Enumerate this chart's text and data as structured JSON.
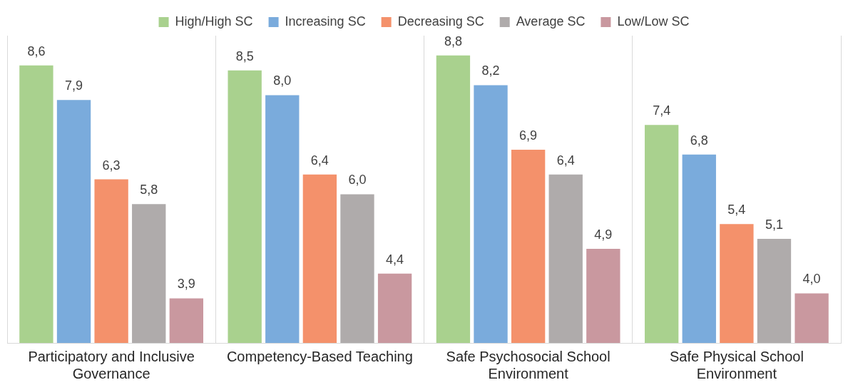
{
  "chart_data": {
    "type": "bar",
    "categories": [
      "Participatory and Inclusive Governance",
      "Competency-Based Teaching",
      "Safe Psychosocial School Environment",
      "Safe Physical School Environment"
    ],
    "series": [
      {
        "name": "High/High SC",
        "color": "#a9d18e",
        "values": [
          8.6,
          8.5,
          8.8,
          7.4
        ],
        "value_labels": [
          "8,6",
          "8,5",
          "8,8",
          "7,4"
        ]
      },
      {
        "name": "Increasing SC",
        "color": "#7aabdc",
        "values": [
          7.9,
          8.0,
          8.2,
          6.8
        ],
        "value_labels": [
          "7,9",
          "8,0",
          "8,2",
          "6,8"
        ]
      },
      {
        "name": "Decreasing SC",
        "color": "#f4916b",
        "values": [
          6.3,
          6.4,
          6.9,
          5.4
        ],
        "value_labels": [
          "6,3",
          "6,4",
          "6,9",
          "5,4"
        ]
      },
      {
        "name": "Average SC",
        "color": "#afabab",
        "values": [
          5.8,
          6.0,
          6.4,
          5.1
        ],
        "value_labels": [
          "5,8",
          "6,0",
          "6,4",
          "5,1"
        ]
      },
      {
        "name": "Low/Low SC",
        "color": "#c9989f",
        "values": [
          3.9,
          4.4,
          4.9,
          4.0
        ],
        "value_labels": [
          "3,9",
          "4,4",
          "4,9",
          "4,0"
        ]
      }
    ],
    "ylim": [
      3,
      9.2
    ],
    "grid": "x",
    "legend": "top",
    "tick_labels": "x"
  }
}
